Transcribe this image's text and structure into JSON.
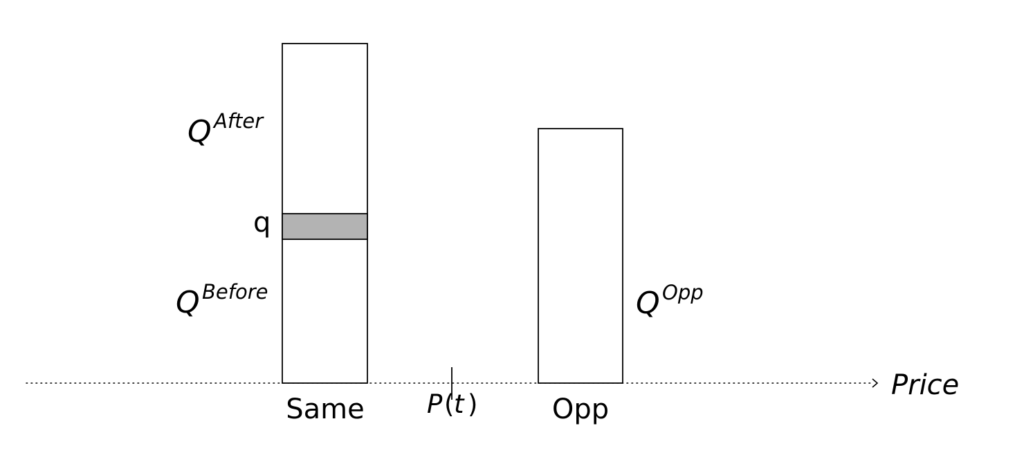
{
  "diagram": {
    "axis": {
      "label": "Price",
      "style": "dotted",
      "arrow": "right"
    },
    "queues": {
      "same": {
        "label": "Same",
        "segments": {
          "after_label": "Q",
          "after_sup": "After",
          "order_label": "q",
          "before_label": "Q",
          "before_sup": "Before"
        }
      },
      "opp": {
        "label": "Opp",
        "label_q": "Q",
        "label_sup": "Opp"
      }
    },
    "price_marker": {
      "label_p": "P",
      "label_open": "(",
      "label_t": "t",
      "label_close": ")"
    },
    "colors": {
      "stroke": "#000000",
      "order_fill": "#b3b3b3",
      "background": "#ffffff"
    }
  }
}
